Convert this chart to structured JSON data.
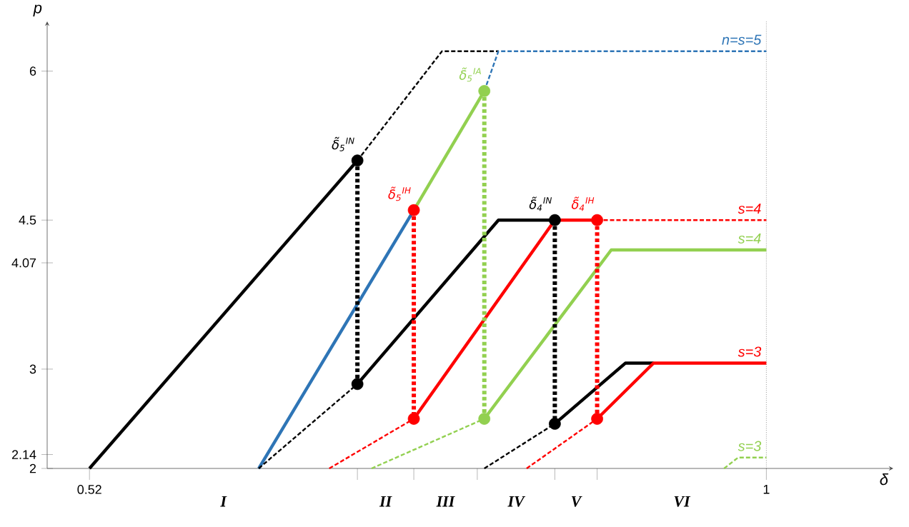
{
  "chart_data": {
    "type": "line",
    "xlabel": "δ",
    "ylabel": "p",
    "xlim": [
      0.49,
      1.09
    ],
    "ylim": [
      2,
      6.5
    ],
    "xticks": [
      0.52,
      {
        "value": 0.71,
        "label": null
      },
      {
        "value": 0.75,
        "label": null
      },
      {
        "value": 0.795,
        "label": null
      },
      {
        "value": 0.85,
        "label": null
      },
      {
        "value": 0.88,
        "label": null
      },
      1
    ],
    "yticks": [
      2,
      2.14,
      3,
      4.07,
      4.5,
      6
    ],
    "series": [
      {
        "color": "#000000",
        "line_style": "solid",
        "x": [
          0.52,
          0.71
        ],
        "values": [
          2,
          5.1
        ]
      },
      {
        "color": "#000000",
        "line_style": "dashed",
        "x": [
          0.71,
          0.77,
          0.81
        ],
        "values": [
          5.1,
          6.2,
          6.2
        ]
      },
      {
        "color": "#2e75b6",
        "line_style": "solid",
        "x": [
          0.64,
          0.75
        ],
        "values": [
          2,
          4.6
        ]
      },
      {
        "color": "#92d050",
        "line_style": "solid",
        "x": [
          0.75,
          0.8
        ],
        "values": [
          4.6,
          5.8
        ]
      },
      {
        "name": "n=s=5",
        "color": "#2e75b6",
        "line_style": "dashed",
        "x": [
          0.8,
          0.81,
          1
        ],
        "values": [
          5.8,
          6.2,
          6.2
        ]
      },
      {
        "color": "#000000",
        "line_style": "dashed",
        "x": [
          0.64,
          0.71
        ],
        "values": [
          2,
          2.85
        ]
      },
      {
        "color": "#000000",
        "line_style": "dotted",
        "x": [
          0.71,
          0.71
        ],
        "values": [
          5.1,
          2.85
        ]
      },
      {
        "color": "#000000",
        "line_style": "solid",
        "x": [
          0.71,
          0.81,
          0.85
        ],
        "values": [
          2.85,
          4.5,
          4.5
        ]
      },
      {
        "color": "#ff0000",
        "line_style": "dashed",
        "x": [
          0.69,
          0.75
        ],
        "values": [
          2,
          2.5
        ]
      },
      {
        "color": "#ff0000",
        "line_style": "dotted",
        "x": [
          0.75,
          0.75
        ],
        "values": [
          4.6,
          2.5
        ]
      },
      {
        "color": "#ff0000",
        "line_style": "solid",
        "x": [
          0.75,
          0.85,
          0.88
        ],
        "values": [
          2.5,
          4.5,
          4.5
        ]
      },
      {
        "name": "s=4",
        "color": "#ff0000",
        "line_style": "dashed",
        "x": [
          0.88,
          1
        ],
        "values": [
          4.5,
          4.5
        ]
      },
      {
        "color": "#92d050",
        "line_style": "dashed",
        "x": [
          0.72,
          0.8
        ],
        "values": [
          2,
          2.5
        ]
      },
      {
        "color": "#92d050",
        "line_style": "dotted",
        "x": [
          0.8,
          0.8
        ],
        "values": [
          5.8,
          2.5
        ]
      },
      {
        "name": "s=4",
        "color": "#92d050",
        "line_style": "solid",
        "x": [
          0.8,
          0.89,
          1
        ],
        "values": [
          2.5,
          4.2,
          4.2
        ]
      },
      {
        "color": "#000000",
        "line_style": "dashed",
        "x": [
          0.8,
          0.85
        ],
        "values": [
          2,
          2.45
        ]
      },
      {
        "color": "#000000",
        "line_style": "dotted",
        "x": [
          0.85,
          0.85
        ],
        "values": [
          4.5,
          2.45
        ]
      },
      {
        "color": "#000000",
        "line_style": "solid",
        "x": [
          0.85,
          0.9,
          0.92
        ],
        "values": [
          2.45,
          3.06,
          3.06
        ]
      },
      {
        "color": "#ff0000",
        "line_style": "dashed",
        "x": [
          0.83,
          0.88
        ],
        "values": [
          2,
          2.5
        ]
      },
      {
        "color": "#ff0000",
        "line_style": "dotted",
        "x": [
          0.88,
          0.88
        ],
        "values": [
          4.5,
          2.5
        ]
      },
      {
        "name": "s=3",
        "color": "#ff0000",
        "line_style": "solid",
        "x": [
          0.88,
          0.92,
          1
        ],
        "values": [
          2.5,
          3.06,
          3.06
        ]
      },
      {
        "name": "s=3",
        "color": "#92d050",
        "line_style": "dashed",
        "x": [
          0.97,
          0.98,
          1
        ],
        "values": [
          2,
          2.11,
          2.11
        ]
      },
      {
        "type": "scatter",
        "marker": "circle",
        "color": "#000000",
        "x": [
          0.71,
          0.85
        ],
        "values": [
          2.85,
          2.45
        ]
      },
      {
        "type": "scatter",
        "marker": "circle",
        "color": "#ff0000",
        "x": [
          0.75,
          0.88
        ],
        "values": [
          2.5,
          2.5
        ]
      },
      {
        "type": "scatter",
        "marker": "circle",
        "color": "#92d050",
        "x": [
          0.8
        ],
        "values": [
          2.5
        ]
      },
      {
        "name": "δ̃$_{5}$$^{IN}$",
        "type": "scatter",
        "marker": "circle",
        "color": "#000000",
        "x": [
          0.71
        ],
        "values": [
          5.1
        ]
      },
      {
        "name": "δ̃$_{5}$$^{IH}$",
        "type": "scatter",
        "marker": "circle",
        "color": "#ff0000",
        "x": [
          0.75
        ],
        "values": [
          4.6
        ]
      },
      {
        "name": "δ̃$_{5}$$^{IA}$",
        "type": "scatter",
        "marker": "circle",
        "color": "#92d050",
        "x": [
          0.8
        ],
        "values": [
          5.8
        ]
      },
      {
        "name": "δ̃$_{4}$$^{IN}$",
        "type": "scatter",
        "marker": "circle",
        "color": "#000000",
        "x": [
          0.85
        ],
        "values": [
          4.5
        ]
      },
      {
        "name": "δ̃$_{4}$$^{IH}$",
        "type": "scatter",
        "marker": "circle",
        "color": "#ff0000",
        "x": [
          0.88
        ],
        "values": [
          4.5
        ]
      }
    ],
    "annotations": [
      "I",
      "II",
      "III",
      "IV",
      "V",
      "VI"
    ],
    "ref_lines": [
      {
        "axis": "x",
        "value": 1
      }
    ]
  }
}
